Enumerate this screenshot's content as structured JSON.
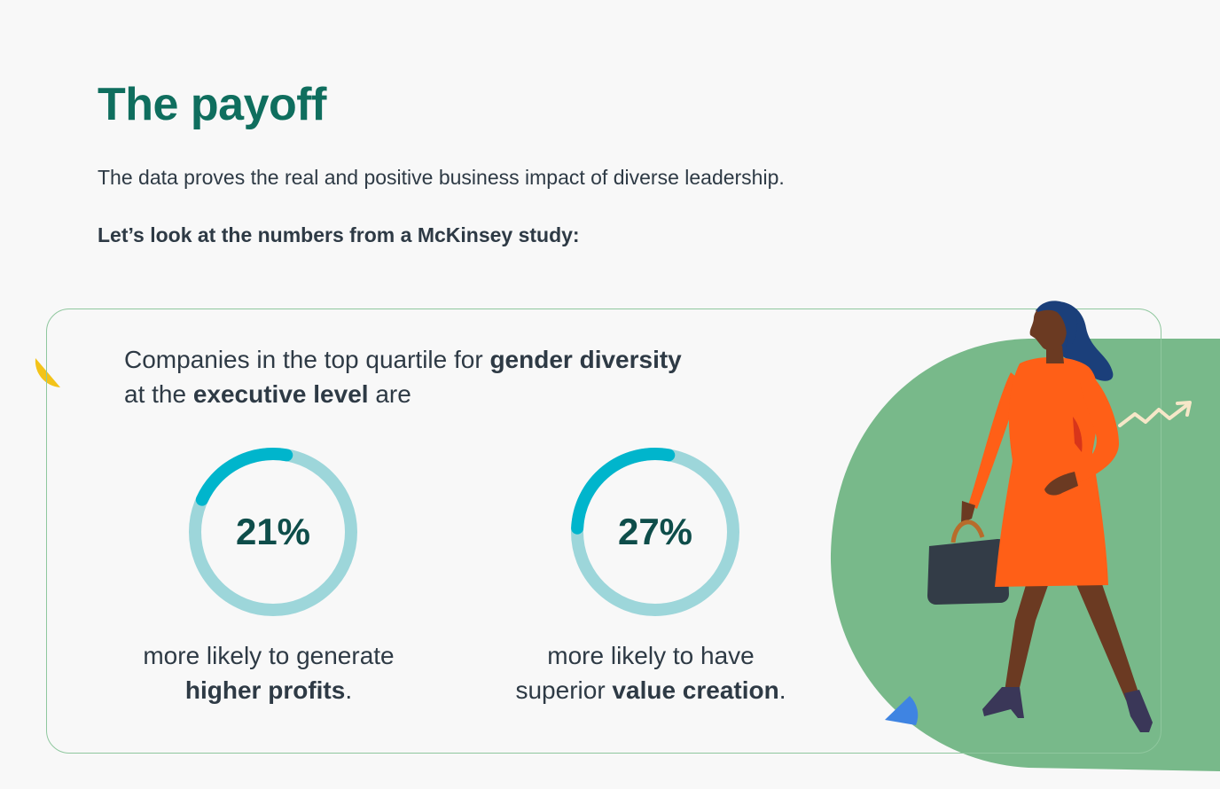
{
  "header": {
    "title": "The payoff",
    "subtitle": "The data proves the real and positive business impact of diverse leadership.",
    "lead": "Let’s look at the numbers from a McKinsey study:"
  },
  "card": {
    "intro_part1": "Companies in the top quartile for ",
    "intro_bold1": "gender diversity",
    "intro_part2": "at the ",
    "intro_bold2": "executive level",
    "intro_part3": " are",
    "stats": [
      {
        "value_text": "21%",
        "value": 21,
        "caption_line1": "more likely to generate",
        "caption_bold": "higher profits",
        "caption_end": "."
      },
      {
        "value_text": "27%",
        "value": 27,
        "caption_line1": "more likely to have",
        "caption_pre": "superior ",
        "caption_bold": "value creation",
        "caption_end": "."
      }
    ]
  },
  "colors": {
    "title": "#0f6e5e",
    "ring_track": "#9dd6da",
    "ring_fill": "#00b5cc",
    "card_border": "#8fc79e",
    "blob": "#78b98a",
    "dress": "#ff5f17"
  },
  "icons": {
    "illustration": "woman-with-briefcase-illustration",
    "arrow": "rising-arrow-icon"
  }
}
